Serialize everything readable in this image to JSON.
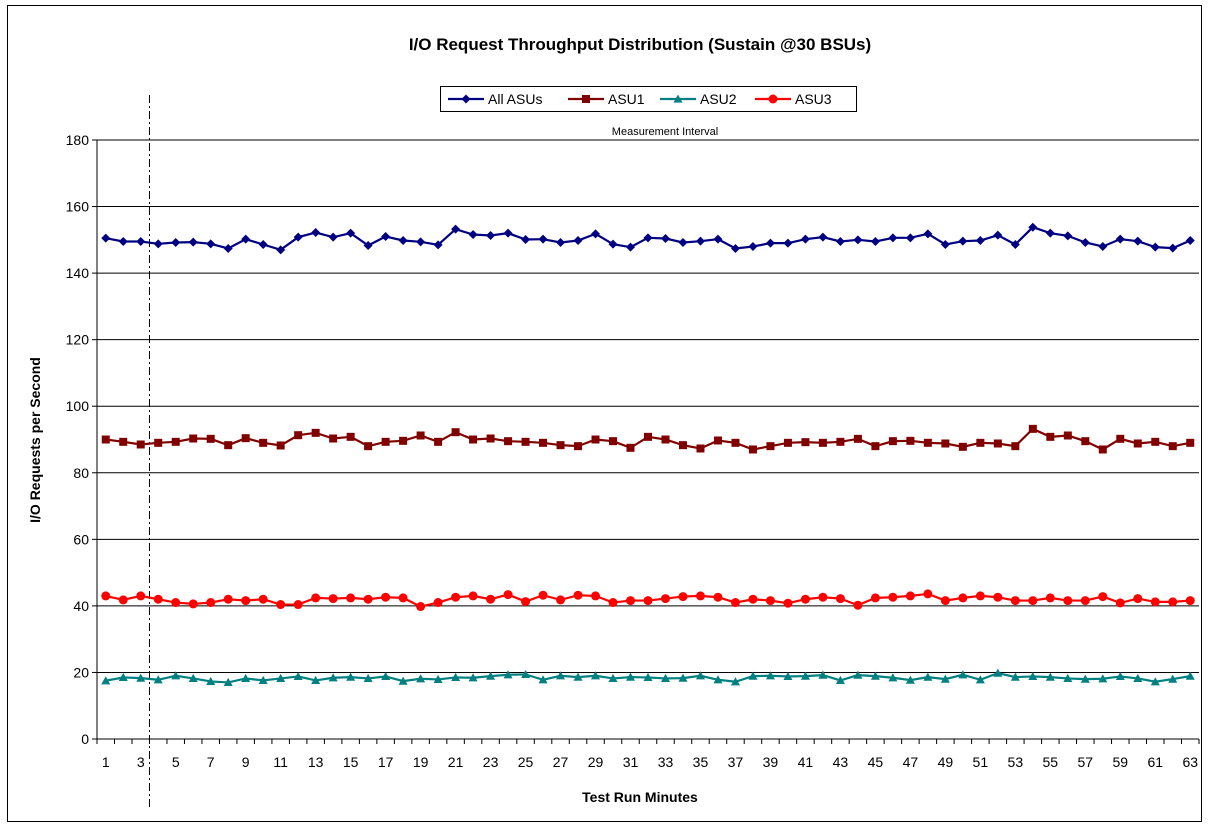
{
  "chart_data": {
    "type": "line",
    "title": "I/O Request Throughput Distribution (Sustain @30 BSUs)",
    "annotation": "Measurement Interval",
    "measurement_start": 3.5,
    "xlabel": "Test Run Minutes",
    "ylabel": "I/O Requests per Second",
    "categories": [
      1,
      null,
      3,
      null,
      5,
      null,
      7,
      null,
      9,
      null,
      11,
      null,
      13,
      null,
      15,
      null,
      17,
      null,
      19,
      null,
      21,
      null,
      23,
      null,
      25,
      null,
      27,
      null,
      29,
      null,
      31,
      null,
      33,
      null,
      35,
      null,
      37,
      null,
      39,
      null,
      41,
      null,
      43,
      null,
      45,
      null,
      47,
      null,
      49,
      null,
      51,
      null,
      53,
      null,
      55,
      null,
      57,
      null,
      59,
      null,
      61,
      null,
      63
    ],
    "ylim": [
      0,
      180
    ],
    "yticks": [
      0,
      20,
      40,
      60,
      80,
      100,
      120,
      140,
      160,
      180
    ],
    "grid": true,
    "legend": "top",
    "series": [
      {
        "name": "All ASUs",
        "color": "#000080",
        "marker": "diamond",
        "values": [
          150.5,
          149.5,
          149.5,
          148.8,
          149.2,
          149.3,
          148.8,
          147.4,
          150.2,
          148.6,
          147,
          150.8,
          152.2,
          150.8,
          152,
          148.3,
          151,
          149.8,
          149.4,
          148.5,
          153.2,
          151.6,
          151.3,
          152,
          150.1,
          150.2,
          149.2,
          149.8,
          151.8,
          148.7,
          147.8,
          150.6,
          150.4,
          149.2,
          149.6,
          150.2,
          147.4,
          148,
          149,
          149,
          150.2,
          150.8,
          149.5,
          150,
          149.5,
          150.6,
          150.6,
          151.8,
          148.6,
          149.6,
          149.8,
          151.4,
          148.6,
          153.8,
          152,
          151.2,
          149.2,
          148,
          150.2,
          149.6,
          147.8,
          147.5,
          149.8
        ]
      },
      {
        "name": "ASU1",
        "color": "#800000",
        "marker": "square",
        "values": [
          90,
          89.3,
          88.5,
          89,
          89.3,
          90.3,
          90.2,
          88.3,
          90.4,
          89,
          88.2,
          91.3,
          92,
          90.3,
          90.8,
          88,
          89.3,
          89.6,
          91.2,
          89.3,
          92.2,
          90,
          90.3,
          89.5,
          89.3,
          89,
          88.3,
          88,
          90,
          89.5,
          87.5,
          90.8,
          90,
          88.3,
          87.3,
          89.7,
          89,
          87,
          88,
          89,
          89.2,
          89,
          89.3,
          90.2,
          88,
          89.5,
          89.6,
          89,
          88.8,
          87.8,
          89,
          88.8,
          88,
          93.2,
          90.8,
          91.2,
          89.5,
          87,
          90.2,
          88.8,
          89.3,
          88,
          89
        ]
      },
      {
        "name": "ASU2",
        "color": "#008080",
        "marker": "triangle",
        "values": [
          17.5,
          18.5,
          18.3,
          17.8,
          19,
          18.2,
          17.3,
          17,
          18.2,
          17.6,
          18.2,
          18.8,
          17.6,
          18.4,
          18.6,
          18.2,
          18.8,
          17.4,
          18.1,
          17.9,
          18.5,
          18.4,
          18.9,
          19.3,
          19.4,
          17.8,
          19,
          18.6,
          19,
          18.2,
          18.6,
          18.5,
          18.2,
          18.3,
          19,
          17.8,
          17.2,
          18.9,
          19,
          18.8,
          18.9,
          19.2,
          17.6,
          19.2,
          18.9,
          18.4,
          17.7,
          18.6,
          18,
          19.3,
          17.8,
          19.8,
          18.6,
          18.8,
          18.6,
          18.2,
          18,
          18.1,
          18.8,
          18.2,
          17.2,
          18,
          18.9
        ]
      },
      {
        "name": "ASU3",
        "color": "#ff0000",
        "marker": "circle",
        "values": [
          43,
          41.8,
          43,
          42,
          41,
          40.6,
          41,
          42,
          41.6,
          42,
          40.4,
          40.4,
          42.4,
          42.2,
          42.4,
          42,
          42.6,
          42.4,
          39.8,
          41,
          42.6,
          43,
          42,
          43.4,
          41.3,
          43.2,
          41.8,
          43.2,
          43,
          41,
          41.6,
          41.6,
          42.2,
          42.8,
          43,
          42.6,
          41,
          42,
          41.6,
          40.8,
          42,
          42.6,
          42.2,
          40.2,
          42.4,
          42.6,
          43,
          43.6,
          41.6,
          42.4,
          43,
          42.6,
          41.6,
          41.6,
          42.4,
          41.6,
          41.6,
          42.8,
          40.9,
          42.2,
          41.2,
          41.2,
          41.6
        ]
      }
    ]
  }
}
